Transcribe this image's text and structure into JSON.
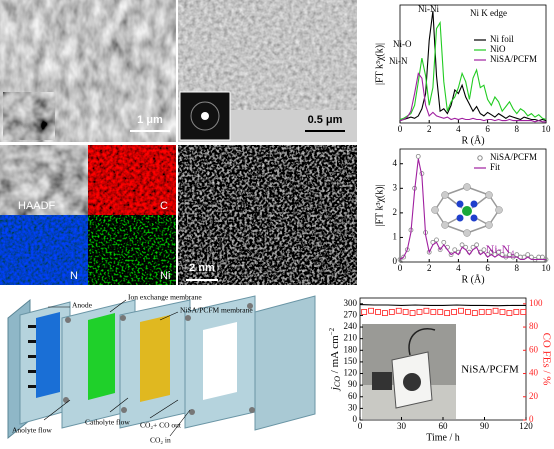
{
  "panels": {
    "sem_scale": "1 μm",
    "tem_scale": "0.5 μm",
    "map_labels": [
      "HAADF",
      "C",
      "N",
      "Ni"
    ],
    "stem_scale": "2 nm"
  },
  "diagram": {
    "labels": {
      "anode": "Anode",
      "iem": "Ion exchange membrane",
      "membrane": "NiSA/PCFM membrane",
      "anolyte": "Anolyte flow",
      "catholyte": "Catholyte flow",
      "co_out": "CO₂+ CO out",
      "co2_in": "CO₂ in"
    }
  },
  "chart_data": [
    {
      "type": "line",
      "xlabel": "R (Å)",
      "ylabel": "|FT k³χ(k)|",
      "annotations": [
        "Ni K edge",
        "Ni-Ni",
        "Ni-O",
        "Ni-N"
      ],
      "xlim": [
        0,
        10
      ],
      "xticks": [
        0,
        2,
        4,
        6,
        8,
        10
      ],
      "ylim": [
        0,
        10
      ],
      "legend": "upper right",
      "x": [
        0,
        0.25,
        0.5,
        0.75,
        1,
        1.25,
        1.5,
        1.75,
        2,
        2.25,
        2.5,
        2.75,
        3,
        3.25,
        3.5,
        3.75,
        4,
        4.25,
        4.5,
        4.75,
        5,
        5.25,
        5.5,
        5.75,
        6,
        6.25,
        6.5,
        6.75,
        7,
        7.25,
        7.5,
        7.75,
        8,
        8.25,
        8.5,
        8.75,
        9,
        9.25,
        9.5,
        9.75,
        10
      ],
      "series": [
        {
          "name": "Ni foil",
          "color": "#000000",
          "values": [
            0.2,
            0.3,
            0.4,
            0.5,
            0.4,
            0.6,
            1.2,
            2.5,
            7,
            9.5,
            4,
            1,
            1.2,
            0.8,
            1.5,
            2.8,
            2.5,
            3.2,
            2.2,
            1.6,
            1,
            1.4,
            0.8,
            0.6,
            0.9,
            0.7,
            0.5,
            0.8,
            0.6,
            0.4,
            0.6,
            0.5,
            0.4,
            0.3,
            0.5,
            0.4,
            0.3,
            0.3,
            0.2,
            0.3,
            0.2
          ]
        },
        {
          "name": "NiO",
          "color": "#22cc22",
          "values": [
            0.3,
            0.4,
            0.6,
            0.8,
            1.5,
            3.5,
            5.5,
            4,
            1.5,
            3,
            8,
            8.5,
            3.5,
            1,
            1.8,
            2.2,
            3,
            4.2,
            3.5,
            2,
            3.8,
            4.5,
            3,
            3.2,
            2,
            1.5,
            2.2,
            1.8,
            1,
            1.4,
            1.8,
            1.2,
            0.8,
            1.2,
            1,
            0.6,
            0.8,
            0.5,
            0.7,
            0.4,
            0.3
          ]
        },
        {
          "name": "NiSA/PCFM",
          "color": "#a020a0",
          "values": [
            0.2,
            0.3,
            0.5,
            1,
            2.5,
            4.2,
            3.8,
            1.5,
            0.6,
            0.9,
            0.6,
            0.5,
            0.4,
            0.5,
            0.3,
            0.4,
            0.3,
            0.4,
            0.3,
            0.3,
            0.4,
            0.3,
            0.3,
            0.2,
            0.3,
            0.3,
            0.2,
            0.3,
            0.2,
            0.2,
            0.3,
            0.2,
            0.2,
            0.2,
            0.2,
            0.2,
            0.2,
            0.1,
            0.2,
            0.1,
            0.1
          ]
        }
      ]
    },
    {
      "type": "line",
      "xlabel": "R (Å)",
      "ylabel": "|FT k³χ(k)|",
      "annotations": [
        "Ni-N₄"
      ],
      "xlim": [
        0,
        10
      ],
      "xticks": [
        0,
        2,
        4,
        6,
        8,
        10
      ],
      "ylim": [
        0,
        4.6
      ],
      "yticks": [
        0,
        1,
        2,
        3,
        4
      ],
      "legend": "upper right",
      "x": [
        0,
        0.25,
        0.5,
        0.75,
        1,
        1.25,
        1.5,
        1.75,
        2,
        2.25,
        2.5,
        2.75,
        3,
        3.25,
        3.5,
        3.75,
        4,
        4.25,
        4.5,
        4.75,
        5,
        5.25,
        5.5,
        5.75,
        6,
        6.25,
        6.5,
        6.75,
        7,
        7.25,
        7.5,
        7.75,
        8,
        8.25,
        8.5,
        8.75,
        9,
        9.25,
        9.5,
        9.75,
        10
      ],
      "series": [
        {
          "name": "NiSA/PCFM",
          "color": "#888888",
          "marker": "circle",
          "values": [
            0.1,
            0.2,
            0.5,
            1.3,
            3,
            4.3,
            3.6,
            1.2,
            0.4,
            0.8,
            0.9,
            0.5,
            0.8,
            0.6,
            0.3,
            0.5,
            0.4,
            0.7,
            0.6,
            0.4,
            0.6,
            0.7,
            0.4,
            0.5,
            0.3,
            0.4,
            0.3,
            0.4,
            0.3,
            0.2,
            0.3,
            0.2,
            0.3,
            0.2,
            0.2,
            0.3,
            0.2,
            0.1,
            0.2,
            0.2,
            0.1
          ]
        },
        {
          "name": "Fit",
          "color": "#a020a0",
          "values": [
            0.1,
            0.2,
            0.5,
            1.2,
            2.9,
            4.2,
            3.5,
            1.1,
            0.4,
            0.7,
            0.8,
            0.5,
            0.7,
            0.5,
            0.3,
            0.4,
            0.3,
            0.6,
            0.5,
            0.3,
            0.5,
            0.6,
            0.3,
            0.4,
            0.2,
            0.3,
            0.2,
            0.3,
            0.2,
            0.2,
            0.2,
            0.2,
            0.2,
            0.1,
            0.1,
            0.2,
            0.1,
            0.1,
            0.1,
            0.1,
            0.1
          ]
        }
      ]
    },
    {
      "type": "line",
      "xlabel": "Time / h",
      "ylabel": {
        "main": "j",
        "sub": "CO",
        "unit": " / mA cm",
        "sup": "−2"
      },
      "y2label": "CO FEs / %",
      "inset_label": "NiSA/PCFM",
      "xlim": [
        0,
        120
      ],
      "xticks": [
        0,
        30,
        60,
        90,
        120
      ],
      "ylim": [
        0,
        315
      ],
      "yticks": [
        0,
        30,
        60,
        90,
        120,
        150,
        180,
        210,
        240,
        270,
        300
      ],
      "y2lim": [
        0,
        105
      ],
      "y2ticks": [
        0,
        20,
        40,
        60,
        80,
        100
      ],
      "series": [
        {
          "color": "#000000",
          "x": [
            0,
            10,
            20,
            30,
            40,
            50,
            60,
            70,
            80,
            90,
            100,
            110,
            120
          ],
          "values": [
            298,
            297,
            297,
            296,
            297,
            296,
            296,
            297,
            296,
            296,
            295,
            296,
            296
          ]
        },
        {
          "color": "#ff2020",
          "axis": "y2",
          "marker": "square",
          "x": [
            3,
            8,
            13,
            18,
            23,
            28,
            33,
            38,
            43,
            48,
            53,
            58,
            63,
            68,
            73,
            78,
            83,
            88,
            93,
            98,
            103,
            108,
            113,
            118
          ],
          "values": [
            93,
            94,
            93,
            92,
            93,
            94,
            93,
            92,
            93,
            94,
            93,
            93,
            92,
            93,
            94,
            93,
            92,
            93,
            93,
            94,
            93,
            92,
            93,
            93
          ]
        }
      ]
    }
  ]
}
